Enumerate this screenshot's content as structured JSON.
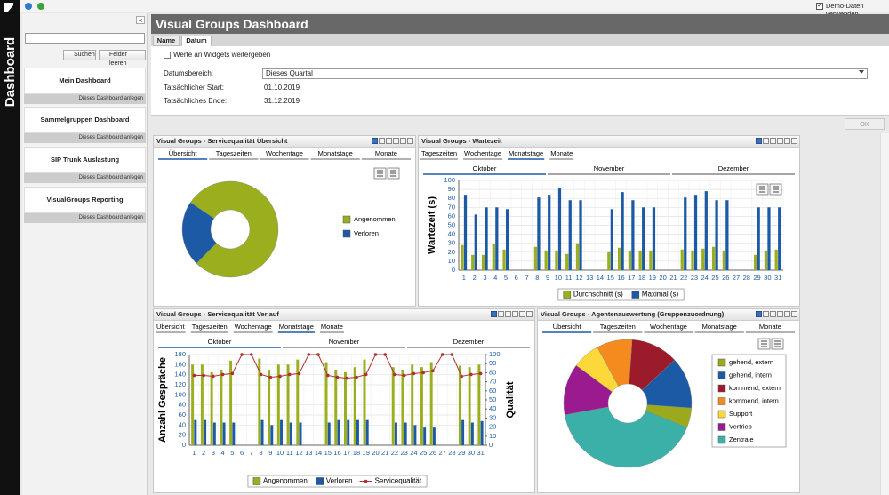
{
  "toolbar": {
    "demo_label": "Demo-Daten verwenden"
  },
  "sidebar": {
    "title": "Dashboard",
    "collapse": "«",
    "search_button": "Suchen",
    "clear_button": "Felder leeren",
    "items": [
      {
        "name": "Mein Dashboard",
        "action": "Dieses Dashboard anlegen"
      },
      {
        "name": "Sammelgruppen Dashboard",
        "action": "Dieses Dashboard anlegen"
      },
      {
        "name": "SIP Trunk Auslastung",
        "action": "Dieses Dashboard anlegen"
      },
      {
        "name": "VisualGroups Reporting",
        "action": "Dieses Dashboard anlegen"
      }
    ]
  },
  "header": {
    "title": "Visual Groups Dashboard",
    "tabs": [
      "Name",
      "Datum"
    ]
  },
  "form": {
    "pass_values": "Werte an Widgets weitergeben",
    "range_label": "Datumsbereich:",
    "range_value": "Dieses Quartal",
    "start_label": "Tatsächlicher Start:",
    "start_value": "01.10.2019",
    "end_label": "Tatsächliches Ende:",
    "end_value": "31.12.2019",
    "ok": "OK"
  },
  "chart_data": [
    {
      "type": "donut",
      "title": "Visual Groups - Servicequalität Übersicht",
      "tabs": [
        "Übersicht",
        "Tageszeiten",
        "Wochentage",
        "Monatstage",
        "Monate"
      ],
      "categories": [
        "Angenommen",
        "Verloren"
      ],
      "values": [
        78,
        22
      ],
      "colors": [
        "#9aae1e",
        "#1d5aa5"
      ]
    },
    {
      "type": "bar",
      "title": "Visual Groups - Wartezeit",
      "tabs": [
        "Tageszeiten",
        "Wochentage",
        "Monatstage",
        "Monate"
      ],
      "periods": [
        "Oktober",
        "November",
        "Dezember"
      ],
      "y_label": "Wartezeit (s)",
      "categories": [
        1,
        2,
        3,
        4,
        5,
        6,
        7,
        8,
        9,
        10,
        11,
        12,
        13,
        14,
        15,
        16,
        17,
        18,
        19,
        20,
        21,
        22,
        23,
        24,
        25,
        26,
        27,
        28,
        29,
        30,
        31
      ],
      "series": [
        {
          "name": "Durchschnitt (s)",
          "color": "#9aae1e",
          "values": [
            28,
            17,
            17,
            29,
            23,
            0,
            0,
            26,
            22,
            22,
            18,
            30,
            0,
            0,
            20,
            25,
            22,
            22,
            22,
            0,
            0,
            23,
            22,
            24,
            26,
            22,
            0,
            0,
            17,
            22,
            23
          ]
        },
        {
          "name": "Maximal (s)",
          "color": "#1d5aa5",
          "values": [
            84,
            62,
            70,
            70,
            68,
            0,
            0,
            81,
            84,
            91,
            78,
            78,
            0,
            0,
            68,
            87,
            78,
            70,
            70,
            0,
            0,
            81,
            84,
            88,
            78,
            78,
            0,
            0,
            70,
            70,
            70
          ]
        }
      ],
      "ylim": [
        0,
        100
      ],
      "yticks": [
        0,
        10,
        20,
        30,
        40,
        50,
        60,
        70,
        80,
        90,
        100
      ],
      "grid": true
    },
    {
      "type": "bar",
      "title": "Visual Groups - Servicequalität Verlauf",
      "tabs": [
        "Übersicht",
        "Tageszeiten",
        "Wochentage",
        "Monatstage",
        "Monate"
      ],
      "periods": [
        "Oktober",
        "November",
        "Dezember"
      ],
      "y_label": "Anzahl Gespräche",
      "y2_label": "Qualität",
      "categories": [
        1,
        2,
        3,
        4,
        5,
        6,
        7,
        8,
        9,
        10,
        11,
        12,
        13,
        14,
        15,
        16,
        17,
        18,
        19,
        20,
        21,
        22,
        23,
        24,
        25,
        26,
        27,
        28,
        29,
        30,
        31
      ],
      "series": [
        {
          "name": "Angenommen",
          "color": "#9aae1e",
          "values": [
            160,
            160,
            145,
            150,
            168,
            0,
            0,
            172,
            150,
            160,
            160,
            170,
            0,
            0,
            165,
            150,
            145,
            155,
            170,
            0,
            0,
            155,
            150,
            160,
            155,
            165,
            0,
            0,
            158,
            155,
            160
          ]
        },
        {
          "name": "Verloren",
          "color": "#1d5aa5",
          "values": [
            50,
            50,
            45,
            45,
            45,
            0,
            0,
            50,
            40,
            50,
            45,
            45,
            0,
            0,
            45,
            50,
            50,
            50,
            50,
            0,
            0,
            45,
            45,
            40,
            35,
            35,
            0,
            0,
            50,
            45,
            48
          ]
        },
        {
          "name": "Servicequalität",
          "color": "#b03030",
          "axis": "y2",
          "values": [
            77,
            77,
            76,
            78,
            79,
            100,
            100,
            78,
            75,
            76,
            78,
            79,
            100,
            100,
            77,
            75,
            74,
            75,
            78,
            100,
            100,
            78,
            77,
            79,
            80,
            82,
            100,
            100,
            76,
            78,
            79
          ]
        }
      ],
      "ylim": [
        0,
        180
      ],
      "yticks": [
        0,
        20,
        40,
        60,
        80,
        100,
        120,
        140,
        160,
        180
      ],
      "y2lim": [
        0,
        100
      ],
      "y2ticks": [
        0,
        10,
        20,
        30,
        40,
        50,
        60,
        70,
        80,
        90,
        100
      ],
      "grid": true
    },
    {
      "type": "donut",
      "title": "Visual Groups - Agentenauswertung (Gruppenzuordnung)",
      "tabs": [
        "Übersicht",
        "Tageszeiten",
        "Wochentage",
        "Monatstage",
        "Monate"
      ],
      "categories": [
        "gehend, extern",
        "gehend, intern",
        "kommend, extern",
        "kommend, intern",
        "Support",
        "Vertrieb",
        "Zentrale"
      ],
      "values": [
        5,
        13,
        12,
        9,
        7,
        13,
        41
      ],
      "colors": [
        "#9aaa1c",
        "#1d5aa5",
        "#9b1b2b",
        "#f58a1f",
        "#fcd83a",
        "#9c1a8f",
        "#3bb0a8"
      ]
    }
  ]
}
